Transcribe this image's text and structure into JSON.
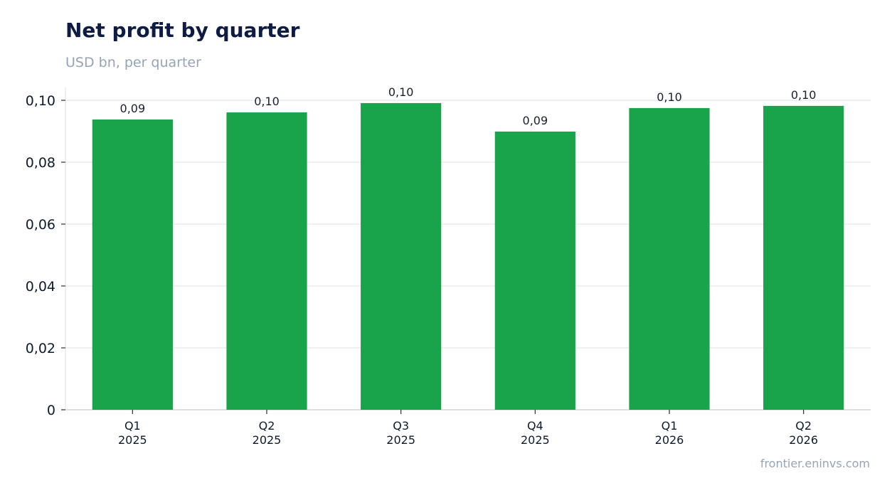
{
  "chart_data": {
    "type": "bar",
    "title": "Net profit by quarter",
    "subtitle": "USD bn, per quarter",
    "categories": [
      [
        "Q1",
        "2025"
      ],
      [
        "Q2",
        "2025"
      ],
      [
        "Q3",
        "2025"
      ],
      [
        "Q4",
        "2025"
      ],
      [
        "Q1",
        "2026"
      ],
      [
        "Q2",
        "2026"
      ]
    ],
    "values": [
      0.0938,
      0.0961,
      0.0991,
      0.0899,
      0.0975,
      0.0982
    ],
    "data_labels": [
      "0,09",
      "0,10",
      "0,10",
      "0,09",
      "0,10",
      "0,10"
    ],
    "ylim": [
      0,
      0.1
    ],
    "yticks": [
      0,
      0.02,
      0.04,
      0.06,
      0.08,
      0.1
    ],
    "ytick_labels": [
      "0",
      "0,02",
      "0,04",
      "0,06",
      "0,08",
      "0,10"
    ],
    "xlabel": "",
    "ylabel": "",
    "grid": true,
    "legend": "none",
    "bar_color": "#19a34a",
    "grid_color": "#e3e7ee",
    "axis_color": "#c9ced8"
  },
  "source": "frontier.eninvs.com"
}
